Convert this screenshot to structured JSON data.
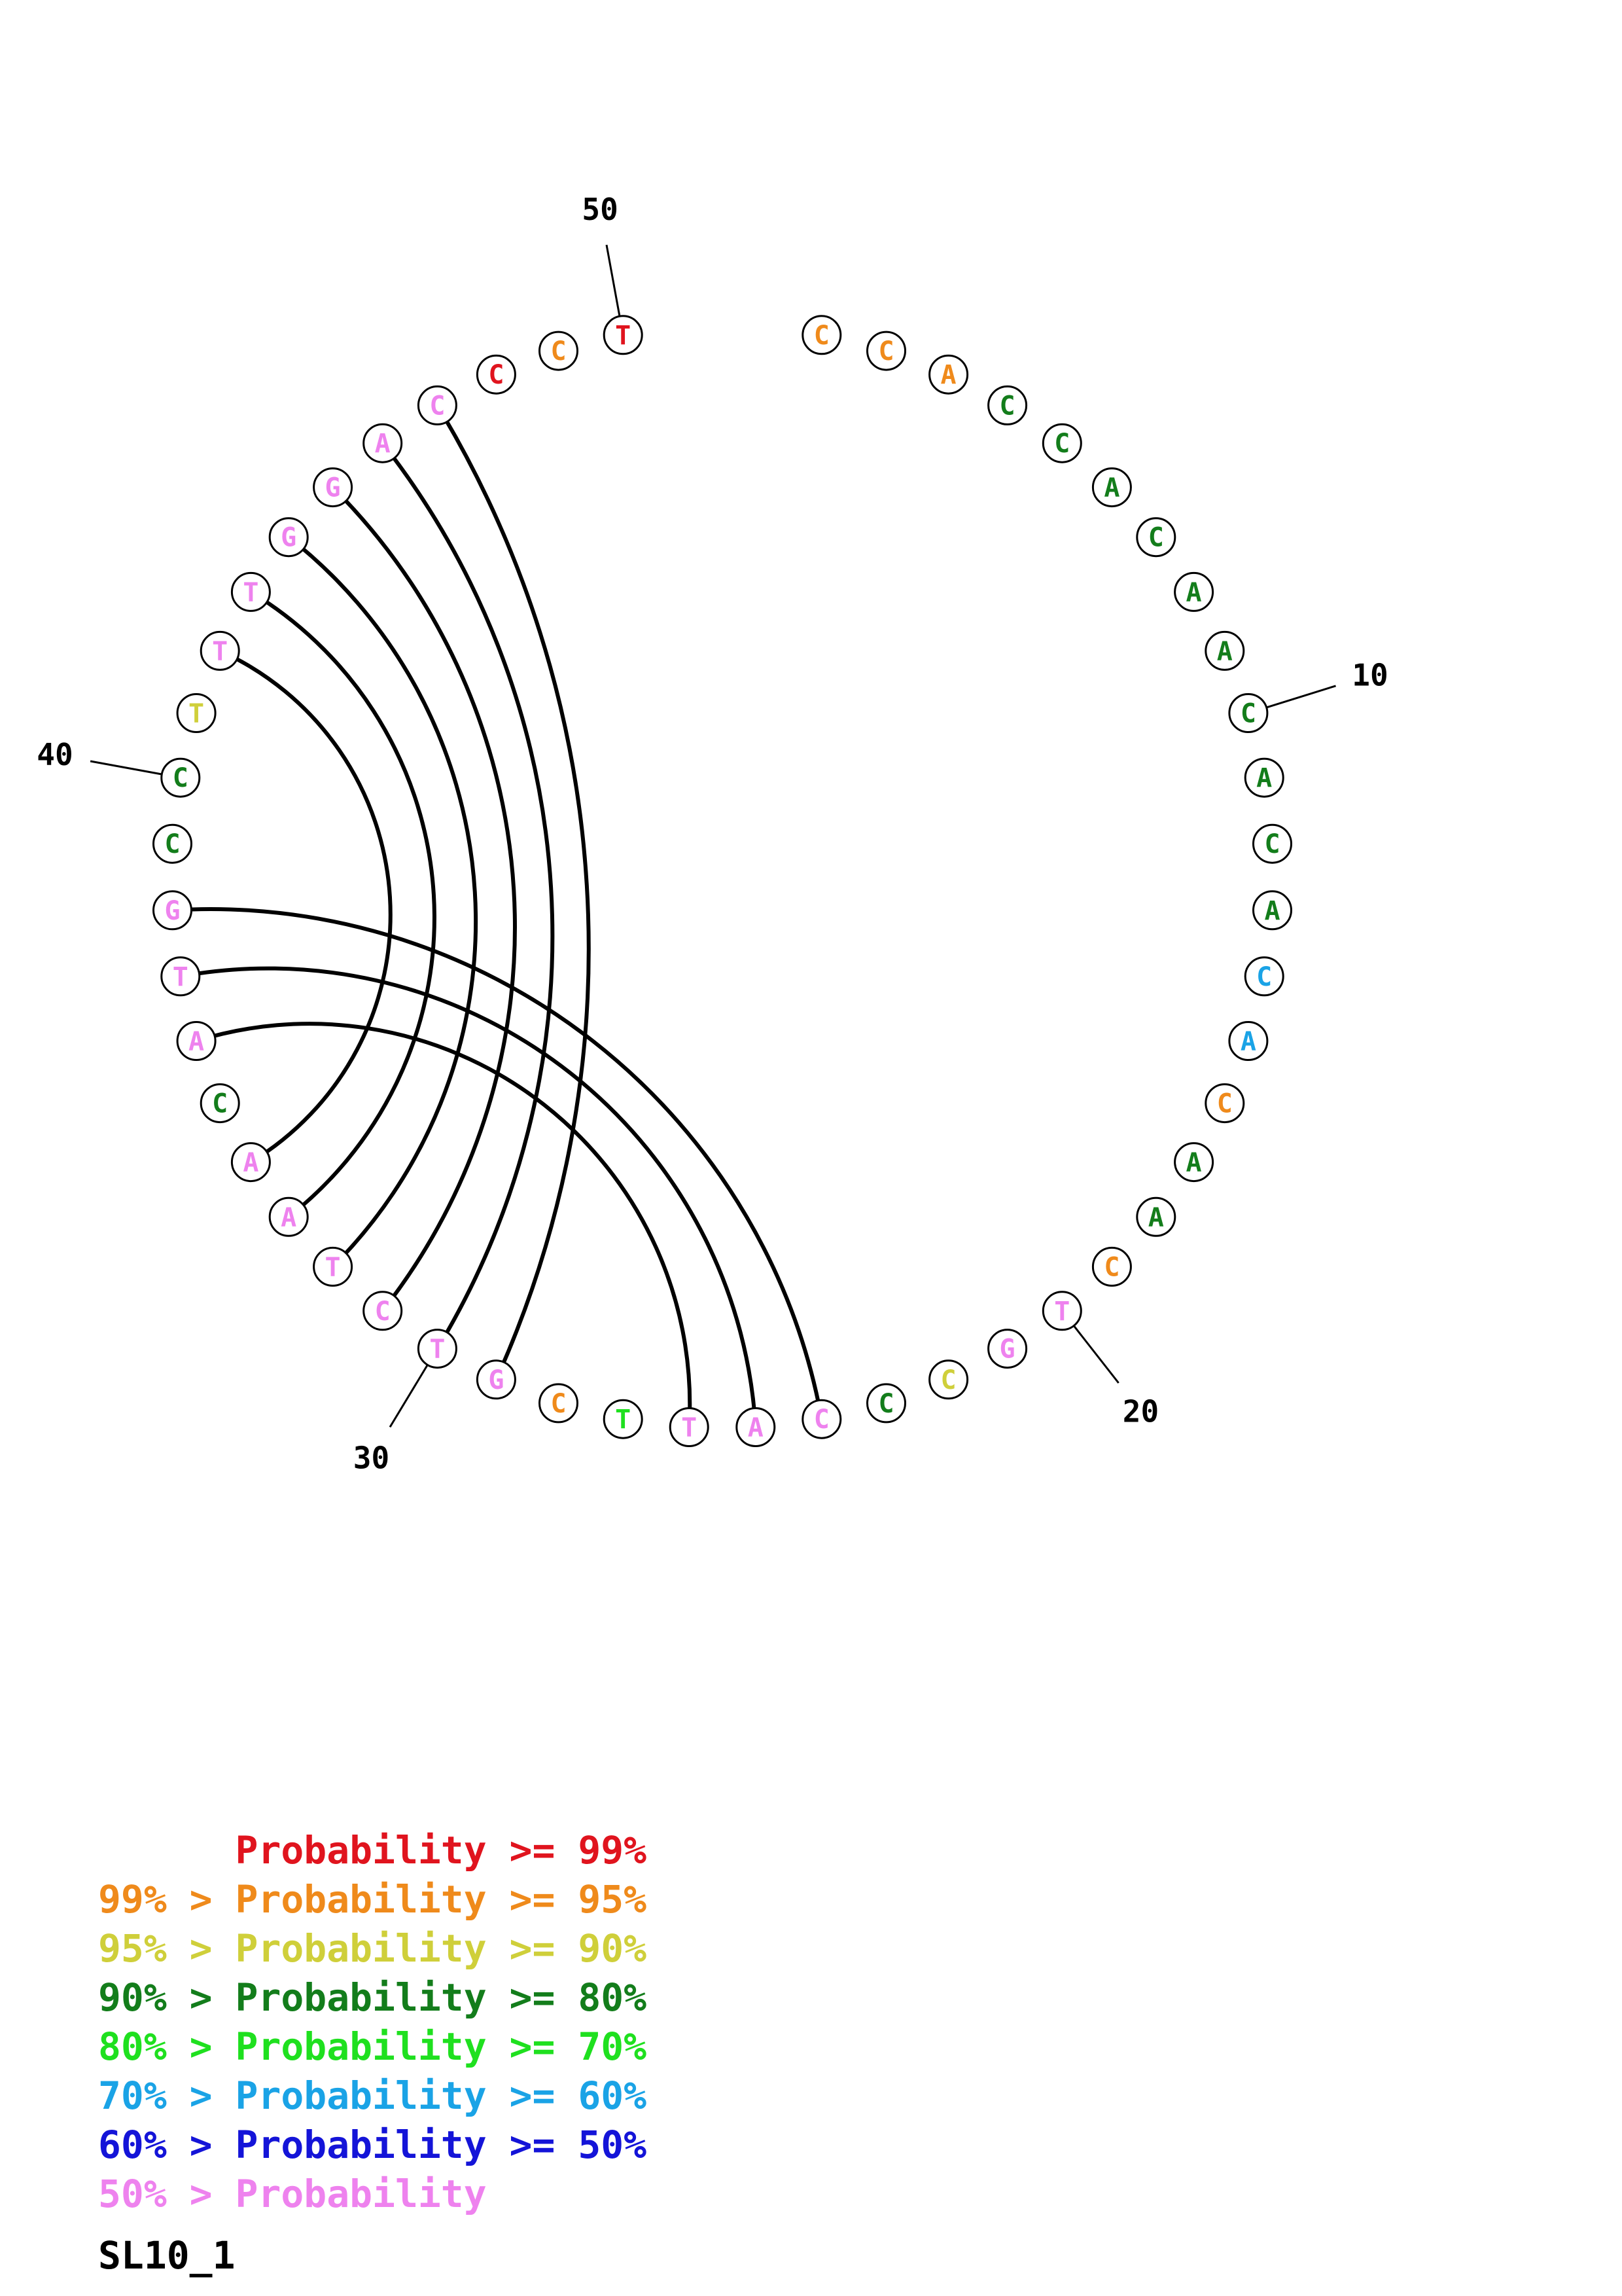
{
  "structure_name": "SL10_1",
  "colors": {
    "red": "#e0141e",
    "orange": "#ef8a1b",
    "yellow": "#cfcf3a",
    "darkgreen": "#137d1b",
    "green": "#1fe01f",
    "cyan": "#1aa3e6",
    "blue": "#1414d8",
    "pink": "#ee82ee"
  },
  "nucleotides": [
    {
      "n": 1,
      "base": "C",
      "color": "orange"
    },
    {
      "n": 2,
      "base": "C",
      "color": "orange"
    },
    {
      "n": 3,
      "base": "A",
      "color": "orange"
    },
    {
      "n": 4,
      "base": "C",
      "color": "darkgreen"
    },
    {
      "n": 5,
      "base": "C",
      "color": "darkgreen"
    },
    {
      "n": 6,
      "base": "A",
      "color": "darkgreen"
    },
    {
      "n": 7,
      "base": "C",
      "color": "darkgreen"
    },
    {
      "n": 8,
      "base": "A",
      "color": "darkgreen"
    },
    {
      "n": 9,
      "base": "A",
      "color": "darkgreen"
    },
    {
      "n": 10,
      "base": "C",
      "color": "darkgreen"
    },
    {
      "n": 11,
      "base": "A",
      "color": "darkgreen"
    },
    {
      "n": 12,
      "base": "C",
      "color": "darkgreen"
    },
    {
      "n": 13,
      "base": "A",
      "color": "darkgreen"
    },
    {
      "n": 14,
      "base": "C",
      "color": "cyan"
    },
    {
      "n": 15,
      "base": "A",
      "color": "cyan"
    },
    {
      "n": 16,
      "base": "C",
      "color": "orange"
    },
    {
      "n": 17,
      "base": "A",
      "color": "darkgreen"
    },
    {
      "n": 18,
      "base": "A",
      "color": "darkgreen"
    },
    {
      "n": 19,
      "base": "C",
      "color": "orange"
    },
    {
      "n": 20,
      "base": "T",
      "color": "pink"
    },
    {
      "n": 21,
      "base": "G",
      "color": "pink"
    },
    {
      "n": 22,
      "base": "C",
      "color": "yellow"
    },
    {
      "n": 23,
      "base": "C",
      "color": "darkgreen"
    },
    {
      "n": 24,
      "base": "C",
      "color": "pink"
    },
    {
      "n": 25,
      "base": "A",
      "color": "pink"
    },
    {
      "n": 26,
      "base": "T",
      "color": "pink"
    },
    {
      "n": 27,
      "base": "T",
      "color": "green"
    },
    {
      "n": 28,
      "base": "C",
      "color": "orange"
    },
    {
      "n": 29,
      "base": "G",
      "color": "pink"
    },
    {
      "n": 30,
      "base": "T",
      "color": "pink"
    },
    {
      "n": 31,
      "base": "C",
      "color": "pink"
    },
    {
      "n": 32,
      "base": "T",
      "color": "pink"
    },
    {
      "n": 33,
      "base": "A",
      "color": "pink"
    },
    {
      "n": 34,
      "base": "A",
      "color": "pink"
    },
    {
      "n": 35,
      "base": "C",
      "color": "darkgreen"
    },
    {
      "n": 36,
      "base": "A",
      "color": "pink"
    },
    {
      "n": 37,
      "base": "T",
      "color": "pink"
    },
    {
      "n": 38,
      "base": "G",
      "color": "pink"
    },
    {
      "n": 39,
      "base": "C",
      "color": "darkgreen"
    },
    {
      "n": 40,
      "base": "C",
      "color": "darkgreen"
    },
    {
      "n": 41,
      "base": "T",
      "color": "yellow"
    },
    {
      "n": 42,
      "base": "T",
      "color": "pink"
    },
    {
      "n": 43,
      "base": "T",
      "color": "pink"
    },
    {
      "n": 44,
      "base": "G",
      "color": "pink"
    },
    {
      "n": 45,
      "base": "G",
      "color": "pink"
    },
    {
      "n": 46,
      "base": "A",
      "color": "pink"
    },
    {
      "n": 47,
      "base": "C",
      "color": "pink"
    },
    {
      "n": 48,
      "base": "C",
      "color": "red"
    },
    {
      "n": 49,
      "base": "C",
      "color": "orange"
    },
    {
      "n": 50,
      "base": "T",
      "color": "red"
    }
  ],
  "pairs": [
    [
      24,
      38
    ],
    [
      25,
      37
    ],
    [
      26,
      36
    ],
    [
      29,
      47
    ],
    [
      30,
      46
    ],
    [
      31,
      45
    ],
    [
      32,
      44
    ],
    [
      33,
      43
    ],
    [
      34,
      42
    ]
  ],
  "tick_labels": [
    {
      "n": 10,
      "label": "10"
    },
    {
      "n": 20,
      "label": "20"
    },
    {
      "n": 30,
      "label": "30"
    },
    {
      "n": 40,
      "label": "40"
    },
    {
      "n": 50,
      "label": "50"
    }
  ],
  "legend": [
    {
      "prefix": "",
      "label": "Probability",
      "suffix": ">= 99%",
      "color": "red"
    },
    {
      "prefix": "99% >",
      "label": "Probability",
      "suffix": ">= 95%",
      "color": "orange"
    },
    {
      "prefix": "95% >",
      "label": "Probability",
      "suffix": ">= 90%",
      "color": "yellow"
    },
    {
      "prefix": "90% >",
      "label": "Probability",
      "suffix": ">= 80%",
      "color": "darkgreen"
    },
    {
      "prefix": "80% >",
      "label": "Probability",
      "suffix": ">= 70%",
      "color": "green"
    },
    {
      "prefix": "70% >",
      "label": "Probability",
      "suffix": ">= 60%",
      "color": "cyan"
    },
    {
      "prefix": "60% >",
      "label": "Probability",
      "suffix": ">= 50%",
      "color": "blue"
    },
    {
      "prefix": "50% >",
      "label": "Probability",
      "suffix": "",
      "color": "pink"
    }
  ]
}
